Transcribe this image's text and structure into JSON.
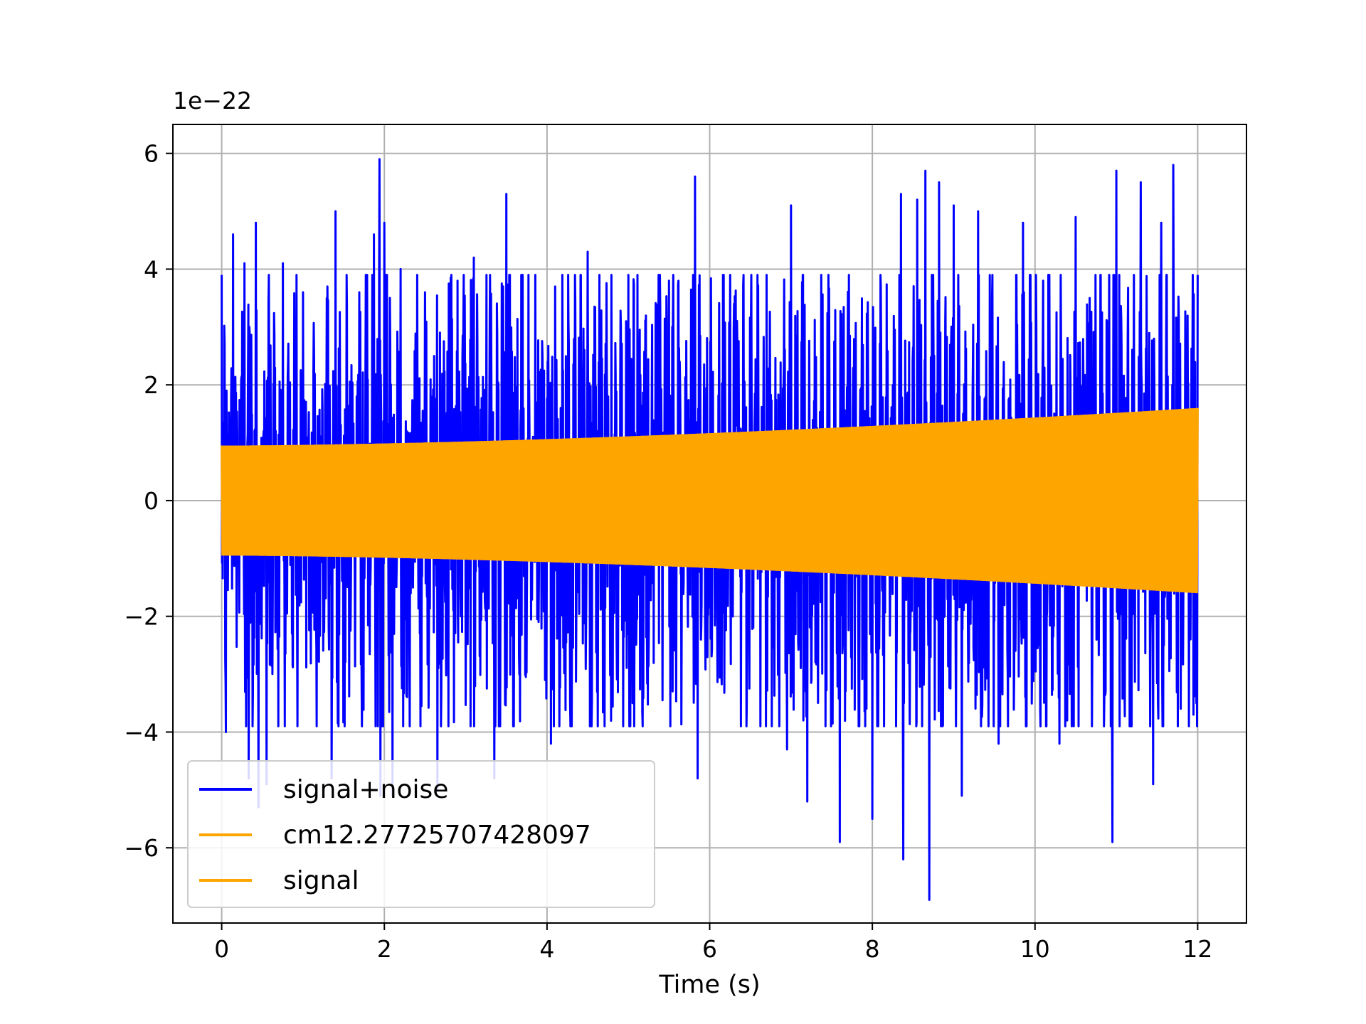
{
  "chart_data": {
    "type": "line",
    "title": "",
    "xlabel": "Time (s)",
    "ylabel": "",
    "y_offset_label": "1e−22",
    "xlim": [
      -0.6,
      12.6
    ],
    "ylim": [
      -7.3,
      6.5
    ],
    "x_ticks": [
      0,
      2,
      4,
      6,
      8,
      10,
      12
    ],
    "x_tick_labels": [
      "0",
      "2",
      "4",
      "6",
      "8",
      "10",
      "12"
    ],
    "y_ticks": [
      -6,
      -4,
      -2,
      0,
      2,
      4,
      6
    ],
    "y_tick_labels": [
      "−6",
      "−4",
      "−2",
      "0",
      "2",
      "4",
      "6"
    ],
    "grid": true,
    "legend_position": "lower-left",
    "series": [
      {
        "name": "signal+noise",
        "color": "#0000ff",
        "x_range": [
          0,
          12
        ],
        "typical_amplitude": 2.2,
        "peaks_max": [
          [
            0.14,
            4.6
          ],
          [
            0.28,
            4.1
          ],
          [
            0.42,
            4.8
          ],
          [
            0.58,
            3.9
          ],
          [
            0.75,
            4.1
          ],
          [
            1.0,
            3.6
          ],
          [
            1.4,
            5.0
          ],
          [
            1.87,
            4.6
          ],
          [
            1.94,
            5.9
          ],
          [
            2.0,
            4.8
          ],
          [
            2.2,
            4.0
          ],
          [
            2.5,
            3.6
          ],
          [
            2.9,
            3.8
          ],
          [
            3.1,
            4.2
          ],
          [
            3.5,
            5.3
          ],
          [
            4.1,
            3.7
          ],
          [
            4.5,
            4.3
          ],
          [
            5.0,
            3.9
          ],
          [
            5.5,
            3.8
          ],
          [
            5.82,
            5.6
          ],
          [
            6.3,
            3.4
          ],
          [
            6.7,
            3.9
          ],
          [
            7.0,
            5.1
          ],
          [
            7.2,
            5.5
          ],
          [
            7.6,
            5.2
          ],
          [
            8.0,
            4.4
          ],
          [
            8.35,
            5.3
          ],
          [
            8.55,
            5.2
          ],
          [
            8.65,
            5.7
          ],
          [
            8.82,
            5.5
          ],
          [
            9.0,
            5.1
          ],
          [
            9.3,
            5.0
          ],
          [
            9.85,
            4.8
          ],
          [
            10.1,
            3.8
          ],
          [
            10.5,
            4.9
          ],
          [
            10.95,
            5.3
          ],
          [
            11.0,
            5.7
          ],
          [
            11.3,
            5.5
          ],
          [
            11.55,
            4.8
          ],
          [
            11.7,
            5.8
          ]
        ],
        "peaks_min": [
          [
            0.05,
            -4.0
          ],
          [
            0.33,
            -4.8
          ],
          [
            0.45,
            -5.3
          ],
          [
            0.55,
            -4.9
          ],
          [
            1.35,
            -4.8
          ],
          [
            1.95,
            -5.1
          ],
          [
            2.1,
            -5.1
          ],
          [
            2.65,
            -5.0
          ],
          [
            3.35,
            -4.8
          ],
          [
            4.05,
            -4.2
          ],
          [
            5.05,
            -3.5
          ],
          [
            5.85,
            -4.8
          ],
          [
            6.95,
            -4.3
          ],
          [
            7.2,
            -5.2
          ],
          [
            7.6,
            -5.9
          ],
          [
            8.0,
            -5.5
          ],
          [
            8.38,
            -6.2
          ],
          [
            8.7,
            -6.9
          ],
          [
            9.1,
            -5.1
          ],
          [
            9.55,
            -4.2
          ],
          [
            10.3,
            -4.2
          ],
          [
            10.95,
            -5.9
          ],
          [
            11.45,
            -4.9
          ],
          [
            11.95,
            -3.7
          ]
        ]
      },
      {
        "name": "cm12.27725707428097",
        "color": "#ffa500",
        "amplitude_start": 0.95,
        "amplitude_end": 1.6
      },
      {
        "name": "signal",
        "color": "#ffa500",
        "amplitude_start": 0.95,
        "amplitude_end": 1.6
      }
    ]
  }
}
